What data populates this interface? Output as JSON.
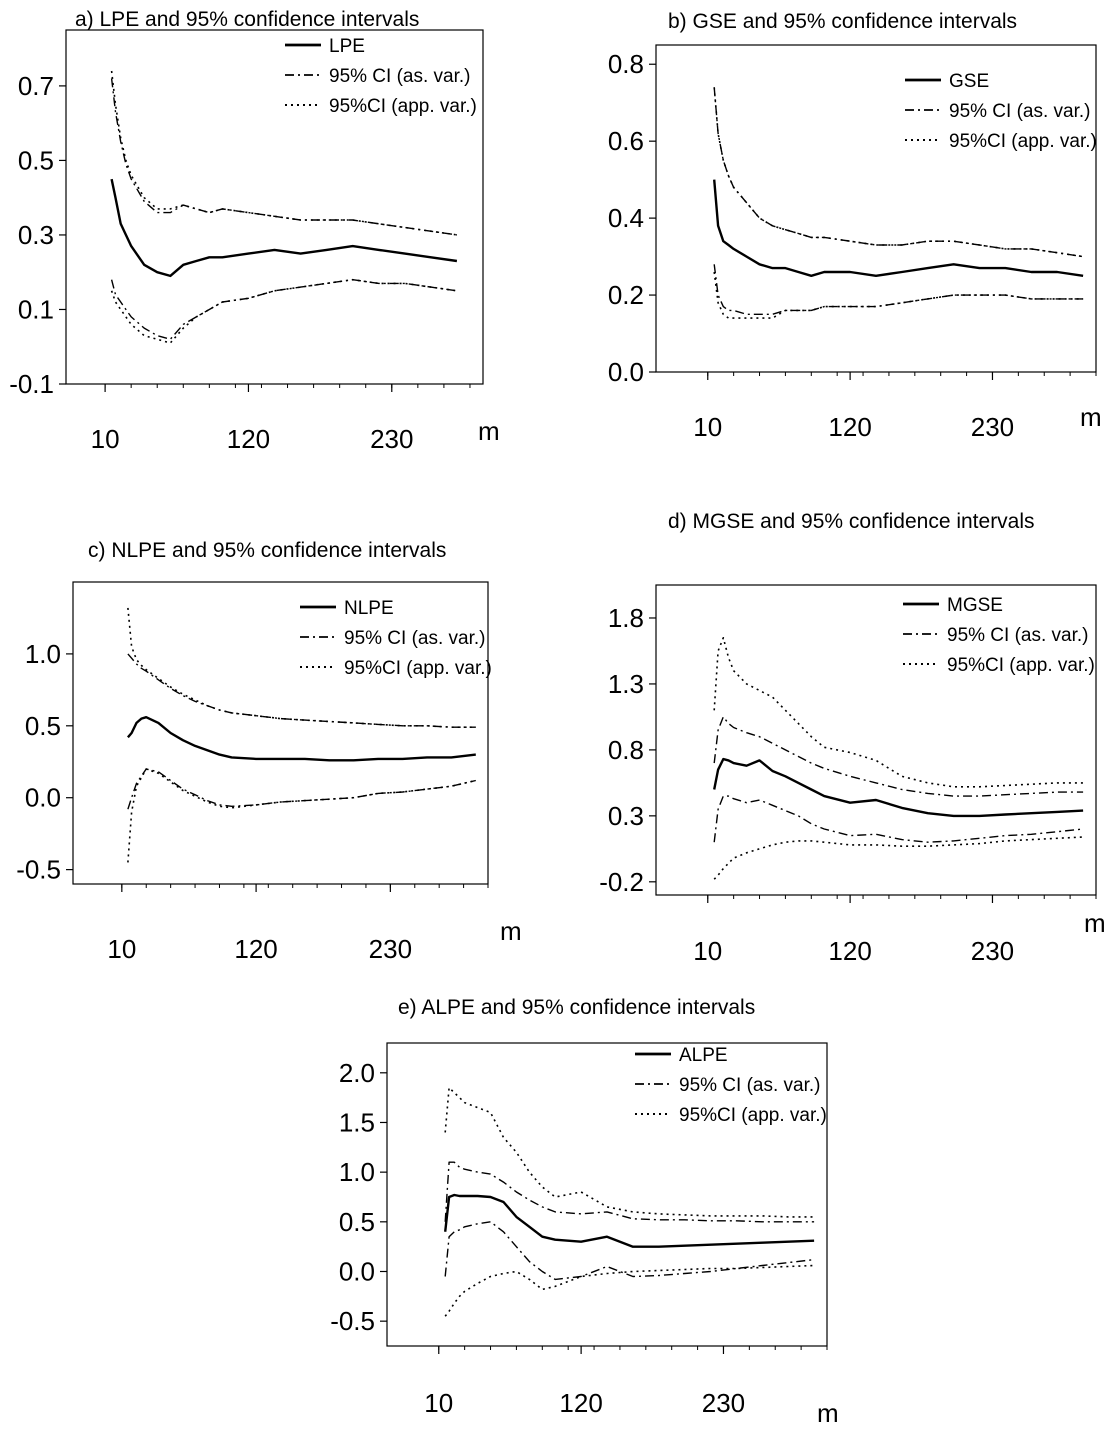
{
  "chart_data": [
    {
      "type": "line",
      "title": "a) LPE and 95% confidence intervals",
      "xlabel": "m",
      "ylabel": "",
      "x_ticks": [
        "10",
        "120",
        "230"
      ],
      "y_ticks": [
        "-0.1",
        "0.1",
        "0.3",
        "0.5",
        "0.7"
      ],
      "xlim": [
        -20,
        300
      ],
      "ylim": [
        -0.1,
        0.85
      ],
      "legend_position": "top-right",
      "legend": [
        "LPE",
        "95% CI (as. var.)",
        "95%CI (app. var.)"
      ],
      "x": [
        15,
        18,
        22,
        26,
        30,
        40,
        50,
        60,
        70,
        80,
        90,
        100,
        120,
        140,
        160,
        180,
        200,
        220,
        240,
        260,
        280
      ],
      "series": [
        {
          "name": "LPE",
          "style": "solid",
          "values": [
            0.45,
            0.4,
            0.33,
            0.3,
            0.27,
            0.22,
            0.2,
            0.19,
            0.22,
            0.23,
            0.24,
            0.24,
            0.25,
            0.26,
            0.25,
            0.26,
            0.27,
            0.26,
            0.25,
            0.24,
            0.23
          ]
        },
        {
          "name": "95% CI (as. var.)",
          "style": "dashdot",
          "values": [
            0.72,
            0.63,
            0.55,
            0.49,
            0.45,
            0.39,
            0.36,
            0.36,
            0.38,
            0.37,
            0.36,
            0.37,
            0.36,
            0.35,
            0.34,
            0.34,
            0.34,
            0.33,
            0.32,
            0.31,
            0.3
          ]
        },
        {
          "name": "95% CI (as. var.)",
          "style": "dashdot",
          "values": [
            0.18,
            0.14,
            0.12,
            0.1,
            0.08,
            0.05,
            0.03,
            0.02,
            0.06,
            0.08,
            0.1,
            0.12,
            0.13,
            0.15,
            0.16,
            0.17,
            0.18,
            0.17,
            0.17,
            0.16,
            0.15
          ]
        },
        {
          "name": "95%CI (app. var.)",
          "style": "dotted",
          "values": [
            0.74,
            0.65,
            0.56,
            0.5,
            0.46,
            0.4,
            0.37,
            0.37,
            0.38,
            0.37,
            0.36,
            0.37,
            0.36,
            0.35,
            0.34,
            0.34,
            0.34,
            0.33,
            0.32,
            0.31,
            0.3
          ]
        },
        {
          "name": "95%CI (app. var.)",
          "style": "dotted",
          "values": [
            0.15,
            0.12,
            0.1,
            0.08,
            0.06,
            0.03,
            0.02,
            0.01,
            0.05,
            0.08,
            0.1,
            0.12,
            0.13,
            0.15,
            0.16,
            0.17,
            0.18,
            0.17,
            0.17,
            0.16,
            0.15
          ]
        }
      ]
    },
    {
      "type": "line",
      "title": "b) GSE and 95% confidence intervals",
      "xlabel": "m",
      "ylabel": "",
      "x_ticks": [
        "10",
        "120",
        "230"
      ],
      "y_ticks": [
        "0.0",
        "0.2",
        "0.4",
        "0.6",
        "0.8"
      ],
      "xlim": [
        -30,
        310
      ],
      "ylim": [
        0.0,
        0.85
      ],
      "legend_position": "top-right",
      "legend": [
        "GSE",
        "95% CI (as. var.)",
        "95%CI (app. var.)"
      ],
      "x": [
        15,
        18,
        22,
        26,
        30,
        40,
        50,
        60,
        70,
        80,
        90,
        100,
        120,
        140,
        160,
        180,
        200,
        220,
        240,
        260,
        280,
        300
      ],
      "series": [
        {
          "name": "GSE",
          "style": "solid",
          "values": [
            0.5,
            0.38,
            0.34,
            0.33,
            0.32,
            0.3,
            0.28,
            0.27,
            0.27,
            0.26,
            0.25,
            0.26,
            0.26,
            0.25,
            0.26,
            0.27,
            0.28,
            0.27,
            0.27,
            0.26,
            0.26,
            0.25
          ]
        },
        {
          "name": "95% CI (as. var.)",
          "style": "dashdot",
          "values": [
            0.74,
            0.62,
            0.55,
            0.51,
            0.48,
            0.44,
            0.4,
            0.38,
            0.37,
            0.36,
            0.35,
            0.35,
            0.34,
            0.33,
            0.33,
            0.34,
            0.34,
            0.33,
            0.32,
            0.32,
            0.31,
            0.3
          ]
        },
        {
          "name": "95% CI (as. var.)",
          "style": "dashdot",
          "values": [
            0.28,
            0.2,
            0.17,
            0.16,
            0.16,
            0.15,
            0.15,
            0.15,
            0.16,
            0.16,
            0.16,
            0.17,
            0.17,
            0.17,
            0.18,
            0.19,
            0.2,
            0.2,
            0.2,
            0.19,
            0.19,
            0.19
          ]
        },
        {
          "name": "95%CI (app. var.)",
          "style": "dotted",
          "values": [
            0.74,
            0.62,
            0.55,
            0.51,
            0.48,
            0.44,
            0.4,
            0.38,
            0.37,
            0.36,
            0.35,
            0.35,
            0.34,
            0.33,
            0.33,
            0.34,
            0.34,
            0.33,
            0.32,
            0.32,
            0.31,
            0.3
          ]
        },
        {
          "name": "95%CI (app. var.)",
          "style": "dotted",
          "values": [
            0.26,
            0.18,
            0.15,
            0.14,
            0.14,
            0.14,
            0.14,
            0.14,
            0.16,
            0.16,
            0.16,
            0.17,
            0.17,
            0.17,
            0.18,
            0.19,
            0.2,
            0.2,
            0.2,
            0.19,
            0.19,
            0.19
          ]
        }
      ]
    },
    {
      "type": "line",
      "title": "c) NLPE and 95% confidence intervals",
      "xlabel": "m",
      "ylabel": "",
      "x_ticks": [
        "10",
        "120",
        "230"
      ],
      "y_ticks": [
        "-0.5",
        "0.0",
        "0.5",
        "1.0"
      ],
      "xlim": [
        -30,
        310
      ],
      "ylim": [
        -0.6,
        1.5
      ],
      "legend_position": "top-right",
      "legend": [
        "NLPE",
        "95% CI (as. var.)",
        "95%CI (app. var.)"
      ],
      "x": [
        15,
        18,
        22,
        26,
        30,
        40,
        50,
        60,
        70,
        80,
        90,
        100,
        120,
        140,
        160,
        180,
        200,
        220,
        240,
        260,
        280,
        300
      ],
      "series": [
        {
          "name": "NLPE",
          "style": "solid",
          "values": [
            0.42,
            0.45,
            0.52,
            0.55,
            0.56,
            0.52,
            0.45,
            0.4,
            0.36,
            0.33,
            0.3,
            0.28,
            0.27,
            0.27,
            0.27,
            0.26,
            0.26,
            0.27,
            0.27,
            0.28,
            0.28,
            0.3
          ]
        },
        {
          "name": "95% CI (as. var.)",
          "style": "dashdot",
          "values": [
            1.0,
            0.97,
            0.93,
            0.9,
            0.88,
            0.82,
            0.76,
            0.71,
            0.67,
            0.64,
            0.61,
            0.59,
            0.57,
            0.55,
            0.54,
            0.53,
            0.52,
            0.51,
            0.5,
            0.5,
            0.49,
            0.49
          ]
        },
        {
          "name": "95% CI (as. var.)",
          "style": "dashdot",
          "values": [
            -0.08,
            0.0,
            0.1,
            0.15,
            0.2,
            0.18,
            0.12,
            0.06,
            0.02,
            -0.02,
            -0.05,
            -0.06,
            -0.05,
            -0.03,
            -0.02,
            -0.01,
            0.0,
            0.03,
            0.04,
            0.06,
            0.08,
            0.12
          ]
        },
        {
          "name": "95%CI (app. var.)",
          "style": "dotted",
          "values": [
            1.32,
            1.05,
            0.96,
            0.92,
            0.89,
            0.83,
            0.77,
            0.72,
            0.68,
            0.64,
            0.61,
            0.59,
            0.57,
            0.55,
            0.54,
            0.53,
            0.52,
            0.51,
            0.5,
            0.5,
            0.49,
            0.49
          ]
        },
        {
          "name": "95%CI (app. var.)",
          "style": "dotted",
          "values": [
            -0.45,
            -0.1,
            0.08,
            0.14,
            0.2,
            0.17,
            0.11,
            0.05,
            0.01,
            -0.03,
            -0.06,
            -0.07,
            -0.05,
            -0.03,
            -0.02,
            -0.01,
            0.0,
            0.03,
            0.04,
            0.06,
            0.08,
            0.12
          ]
        }
      ]
    },
    {
      "type": "line",
      "title": "d) MGSE and 95% confidence intervals",
      "xlabel": "m",
      "ylabel": "",
      "x_ticks": [
        "10",
        "120",
        "230"
      ],
      "y_ticks": [
        "-0.2",
        "0.3",
        "0.8",
        "1.3",
        "1.8"
      ],
      "xlim": [
        -30,
        310
      ],
      "ylim": [
        -0.3,
        2.05
      ],
      "legend_position": "top-right",
      "legend": [
        "MGSE",
        "95% CI (as. var.)",
        "95%CI (app. var.)"
      ],
      "x": [
        15,
        18,
        22,
        26,
        30,
        40,
        50,
        60,
        70,
        80,
        90,
        100,
        120,
        140,
        160,
        180,
        200,
        220,
        240,
        260,
        280,
        300
      ],
      "series": [
        {
          "name": "MGSE",
          "style": "solid",
          "values": [
            0.5,
            0.65,
            0.73,
            0.72,
            0.7,
            0.68,
            0.72,
            0.64,
            0.6,
            0.55,
            0.5,
            0.45,
            0.4,
            0.42,
            0.36,
            0.32,
            0.3,
            0.3,
            0.31,
            0.32,
            0.33,
            0.34
          ]
        },
        {
          "name": "95% CI (as. var.)",
          "style": "dashdot",
          "values": [
            0.7,
            0.95,
            1.05,
            1.0,
            0.97,
            0.93,
            0.9,
            0.85,
            0.8,
            0.75,
            0.7,
            0.66,
            0.6,
            0.55,
            0.5,
            0.47,
            0.45,
            0.45,
            0.46,
            0.47,
            0.48,
            0.48
          ]
        },
        {
          "name": "95% CI (as. var.)",
          "style": "dashdot",
          "values": [
            0.1,
            0.35,
            0.45,
            0.45,
            0.43,
            0.4,
            0.42,
            0.38,
            0.34,
            0.3,
            0.24,
            0.2,
            0.15,
            0.16,
            0.12,
            0.1,
            0.11,
            0.13,
            0.15,
            0.16,
            0.18,
            0.2
          ]
        },
        {
          "name": "95%CI (app. var.)",
          "style": "dotted",
          "values": [
            1.1,
            1.55,
            1.65,
            1.5,
            1.4,
            1.3,
            1.25,
            1.2,
            1.1,
            1.0,
            0.9,
            0.82,
            0.78,
            0.72,
            0.6,
            0.55,
            0.52,
            0.52,
            0.53,
            0.54,
            0.55,
            0.55
          ]
        },
        {
          "name": "95%CI (app. var.)",
          "style": "dotted",
          "values": [
            -0.18,
            -0.15,
            -0.1,
            -0.06,
            -0.02,
            0.02,
            0.05,
            0.08,
            0.1,
            0.11,
            0.11,
            0.1,
            0.08,
            0.08,
            0.07,
            0.07,
            0.08,
            0.09,
            0.11,
            0.12,
            0.13,
            0.14
          ]
        }
      ]
    },
    {
      "type": "line",
      "title": "e) ALPE and 95% confidence intervals",
      "xlabel": "m",
      "ylabel": "",
      "x_ticks": [
        "10",
        "120",
        "230"
      ],
      "y_ticks": [
        "-0.5",
        "0.0",
        "0.5",
        "1.0",
        "1.5",
        "2.0"
      ],
      "xlim": [
        -30,
        310
      ],
      "ylim": [
        -0.75,
        2.3
      ],
      "legend_position": "top-right",
      "legend": [
        "ALPE",
        "95% CI (as. var.)",
        "95%CI (app. var.)"
      ],
      "x": [
        15,
        18,
        22,
        26,
        30,
        40,
        50,
        60,
        70,
        80,
        90,
        100,
        120,
        140,
        160,
        180,
        200,
        220,
        240,
        260,
        280,
        300
      ],
      "series": [
        {
          "name": "ALPE",
          "style": "solid",
          "values": [
            0.4,
            0.75,
            0.77,
            0.76,
            0.76,
            0.76,
            0.75,
            0.7,
            0.55,
            0.45,
            0.35,
            0.32,
            0.3,
            0.35,
            0.25,
            0.25,
            0.26,
            0.27,
            0.28,
            0.29,
            0.3,
            0.31
          ]
        },
        {
          "name": "95% CI (as. var.)",
          "style": "dashdot",
          "values": [
            0.5,
            1.1,
            1.1,
            1.05,
            1.03,
            1.0,
            0.98,
            0.9,
            0.8,
            0.72,
            0.65,
            0.6,
            0.58,
            0.6,
            0.53,
            0.52,
            0.52,
            0.51,
            0.51,
            0.5,
            0.5,
            0.5
          ]
        },
        {
          "name": "95% CI (as. var.)",
          "style": "dashdot",
          "values": [
            -0.05,
            0.35,
            0.4,
            0.42,
            0.45,
            0.48,
            0.5,
            0.4,
            0.25,
            0.1,
            0.0,
            -0.08,
            -0.05,
            0.05,
            -0.05,
            -0.04,
            -0.02,
            0.0,
            0.03,
            0.06,
            0.09,
            0.12
          ]
        },
        {
          "name": "95%CI (app. var.)",
          "style": "dotted",
          "values": [
            1.4,
            1.85,
            1.8,
            1.75,
            1.7,
            1.65,
            1.6,
            1.35,
            1.2,
            1.0,
            0.85,
            0.75,
            0.8,
            0.65,
            0.6,
            0.58,
            0.57,
            0.56,
            0.56,
            0.56,
            0.55,
            0.55
          ]
        },
        {
          "name": "95%CI (app. var.)",
          "style": "dotted",
          "values": [
            -0.45,
            -0.4,
            -0.32,
            -0.25,
            -0.2,
            -0.12,
            -0.05,
            -0.02,
            0.0,
            -0.08,
            -0.18,
            -0.15,
            -0.05,
            -0.02,
            0.0,
            0.01,
            0.02,
            0.03,
            0.03,
            0.04,
            0.05,
            0.06
          ]
        }
      ]
    }
  ]
}
